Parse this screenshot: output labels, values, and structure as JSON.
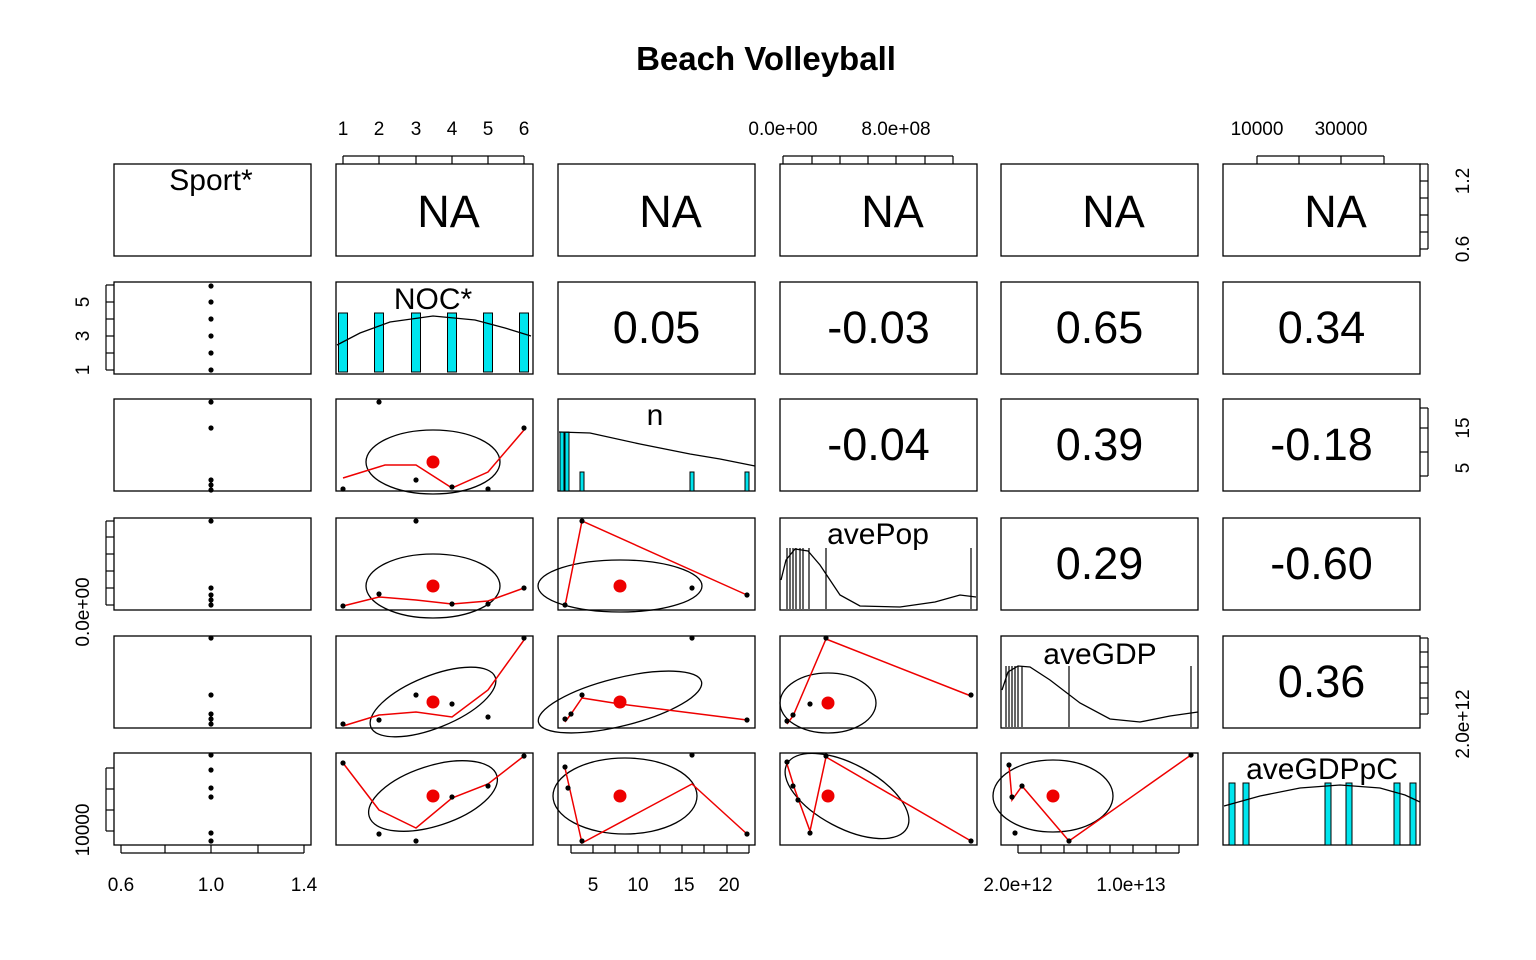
{
  "chart_data": {
    "type": "scatter",
    "title": "Beach Volleyball",
    "variables": [
      "Sport*",
      "NOC*",
      "n",
      "avePop",
      "aveGDP",
      "aveGDPpC"
    ],
    "correlations": [
      {
        "row": 0,
        "col": 1,
        "text": "NA"
      },
      {
        "row": 0,
        "col": 2,
        "text": "NA"
      },
      {
        "row": 0,
        "col": 3,
        "text": "NA"
      },
      {
        "row": 0,
        "col": 4,
        "text": "NA"
      },
      {
        "row": 0,
        "col": 5,
        "text": "NA"
      },
      {
        "row": 1,
        "col": 2,
        "text": "0.05"
      },
      {
        "row": 1,
        "col": 3,
        "text": "-0.03"
      },
      {
        "row": 1,
        "col": 4,
        "text": "0.65"
      },
      {
        "row": 1,
        "col": 5,
        "text": "0.34"
      },
      {
        "row": 2,
        "col": 3,
        "text": "-0.04"
      },
      {
        "row": 2,
        "col": 4,
        "text": "0.39"
      },
      {
        "row": 2,
        "col": 5,
        "text": "-0.18"
      },
      {
        "row": 3,
        "col": 4,
        "text": "0.29"
      },
      {
        "row": 3,
        "col": 5,
        "text": "-0.60"
      },
      {
        "row": 4,
        "col": 5,
        "text": "0.36"
      }
    ],
    "axes": {
      "top": [
        {
          "col": 1,
          "labels": [
            "1",
            "2",
            "3",
            "4",
            "5",
            "6"
          ]
        },
        {
          "col": 3,
          "labels": [
            "0.0e+00",
            "8.0e+08"
          ]
        },
        {
          "col": 5,
          "labels": [
            "10000",
            "30000"
          ]
        }
      ],
      "bottom": [
        {
          "col": 0,
          "labels": [
            "0.6",
            "1.0",
            "1.4"
          ]
        },
        {
          "col": 2,
          "labels": [
            "5",
            "10",
            "15",
            "20"
          ]
        },
        {
          "col": 4,
          "labels": [
            "2.0e+12",
            "1.0e+13"
          ]
        }
      ],
      "left": [
        {
          "row": 1,
          "labels": [
            "1",
            "3",
            "5"
          ]
        },
        {
          "row": 3,
          "labels": [
            "0.0e+00"
          ]
        },
        {
          "row": 5,
          "labels": [
            "10000"
          ]
        }
      ],
      "right": [
        {
          "row": 0,
          "labels": [
            "0.6",
            "1.2"
          ]
        },
        {
          "row": 2,
          "labels": [
            "5",
            "15"
          ]
        },
        {
          "row": 4,
          "labels": [
            "2.0e+12"
          ]
        }
      ]
    }
  },
  "colors": {
    "smoother": "#ee0000",
    "mean_point": "#ee0000",
    "histogram_fill": "#00e5ee",
    "ink": "#000000"
  }
}
